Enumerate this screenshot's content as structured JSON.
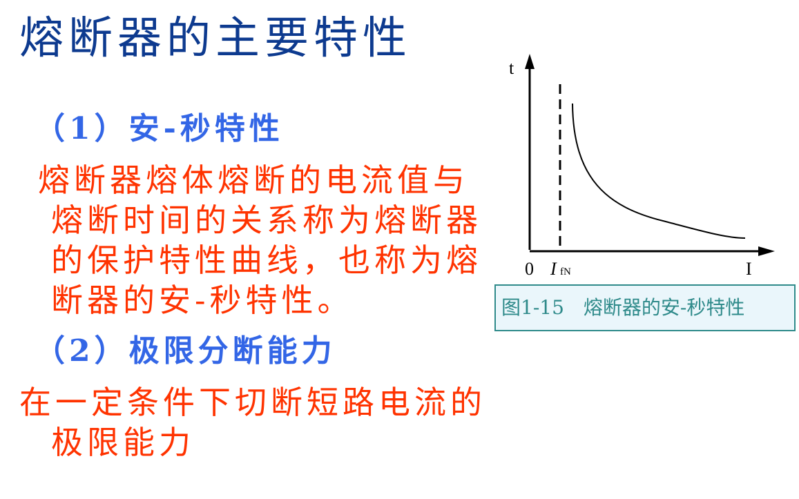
{
  "title": "熔断器的主要特性",
  "sections": [
    {
      "heading": "（1）安-秒特性",
      "lines": [
        "熔断器熔体熔断的电流值与",
        "熔断时间的关系称为熔断器",
        "的保护特性曲线，也称为熔",
        "断器的安-秒特性。"
      ]
    },
    {
      "heading": "（2）极限分断能力",
      "lines": [
        "在一定条件下切断短路电流的",
        "极限能力"
      ]
    }
  ],
  "figure": {
    "y_axis_label": "t",
    "x_axis_label": "I",
    "origin_label": "0",
    "ifn_label_main": "I",
    "ifn_label_sub": "fN",
    "caption": "图1-15　熔断器的安-秒特性"
  },
  "colors": {
    "title": "#0d3a8f",
    "heading": "#3366e6",
    "body": "#ff3300",
    "caption": "#2e8a8a"
  }
}
